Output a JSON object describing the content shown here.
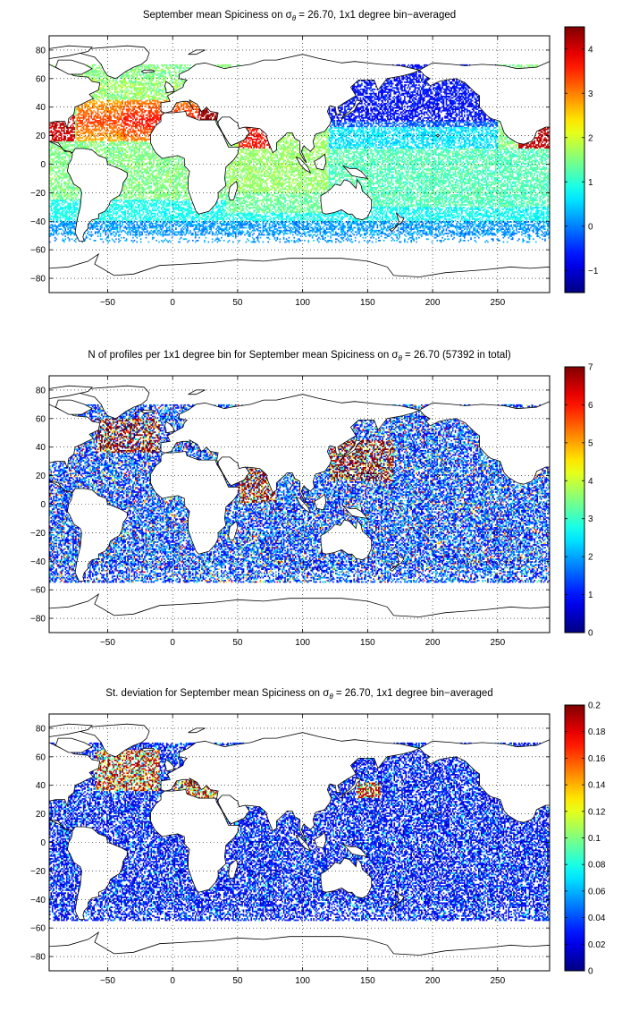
{
  "chart_data": [
    {
      "type": "heatmap",
      "title_parts": [
        "September mean Spiciness on ",
        "σ",
        "θ",
        " = 26.70, 1x1 degree bin−averaged"
      ],
      "xlim": [
        -95,
        290
      ],
      "ylim": [
        -90,
        90
      ],
      "x_ticks": [
        -50,
        0,
        50,
        100,
        150,
        200,
        250
      ],
      "y_ticks": [
        80,
        60,
        40,
        20,
        0,
        -20,
        -40,
        -60,
        -80
      ],
      "grid": true,
      "colorbar": {
        "range": [
          -1.5,
          4.5
        ],
        "ticks": [
          4,
          3,
          2,
          1,
          0,
          -1
        ]
      },
      "colormap": "jet",
      "pattern": "spiciness"
    },
    {
      "type": "heatmap",
      "title_parts": [
        "N of profiles per 1x1 degree bin for September mean Spiciness on ",
        "σ",
        "θ",
        " = 26.70 (57392 in total)"
      ],
      "xlim": [
        -95,
        290
      ],
      "ylim": [
        -90,
        90
      ],
      "x_ticks": [
        -50,
        0,
        50,
        100,
        150,
        200,
        250
      ],
      "y_ticks": [
        80,
        60,
        40,
        20,
        0,
        -20,
        -40,
        -60,
        -80
      ],
      "grid": true,
      "colorbar": {
        "range": [
          0,
          7
        ],
        "ticks": [
          7,
          6,
          5,
          4,
          3,
          2,
          1,
          0
        ]
      },
      "colormap": "jet",
      "pattern": "count"
    },
    {
      "type": "heatmap",
      "title_parts": [
        "St. deviation for September mean Spiciness on ",
        "σ",
        "θ",
        " = 26.70, 1x1 degree bin−averaged"
      ],
      "xlim": [
        -95,
        290
      ],
      "ylim": [
        -90,
        90
      ],
      "x_ticks": [
        -50,
        0,
        50,
        100,
        150,
        200,
        250
      ],
      "y_ticks": [
        80,
        60,
        40,
        20,
        0,
        -20,
        -40,
        -60,
        -80
      ],
      "grid": true,
      "colorbar": {
        "range": [
          0,
          0.2
        ],
        "ticks": [
          0.2,
          0.18,
          0.16,
          0.14,
          0.12,
          0.1,
          0.08,
          0.06,
          0.04,
          0.02,
          0
        ]
      },
      "colormap": "jet",
      "pattern": "stdev"
    }
  ]
}
